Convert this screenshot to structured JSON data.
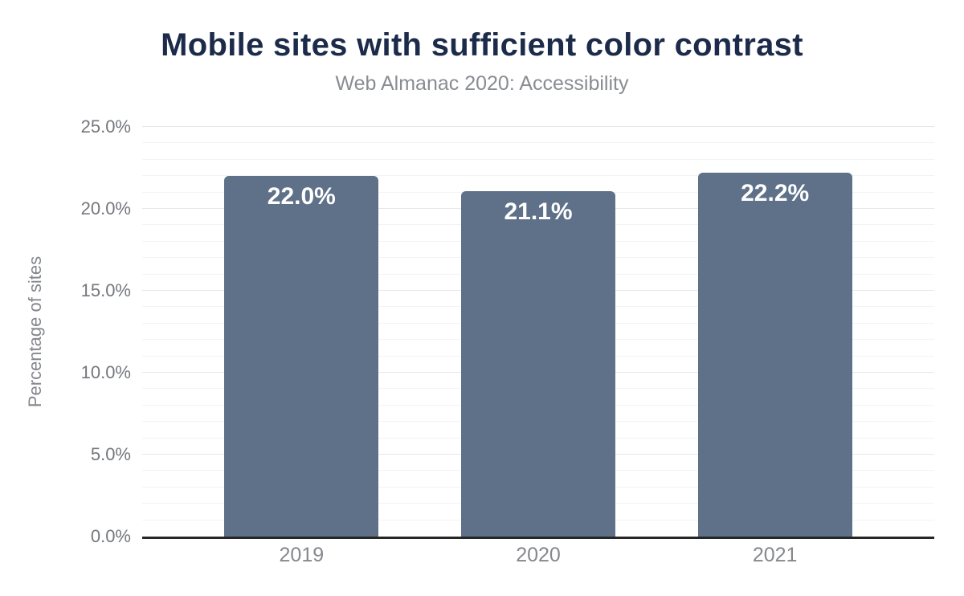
{
  "header": {
    "title": "Mobile sites with sufficient color contrast",
    "subtitle": "Web Almanac 2020: Accessibility"
  },
  "chart_data": {
    "type": "bar",
    "title": "Mobile sites with sufficient color contrast",
    "subtitle": "Web Almanac 2020: Accessibility",
    "categories": [
      "2019",
      "2020",
      "2021"
    ],
    "values": [
      22.0,
      21.1,
      22.2
    ],
    "bar_labels": [
      "22.0%",
      "21.1%",
      "22.2%"
    ],
    "xlabel": "",
    "ylabel": "Percentage of sites",
    "ylim": [
      0,
      25
    ],
    "yticks": [
      {
        "value": 0,
        "label": "0.0%"
      },
      {
        "value": 5,
        "label": "5.0%"
      },
      {
        "value": 10,
        "label": "10.0%"
      },
      {
        "value": 15,
        "label": "15.0%"
      },
      {
        "value": 20,
        "label": "20.0%"
      },
      {
        "value": 25,
        "label": "25.0%"
      }
    ],
    "minor_tick_step": 1,
    "major_tick_step": 5,
    "grid": "horizontal major and minor gridlines",
    "legend": "none",
    "colors": {
      "bar": "#5e7189",
      "bar_label": "#ffffff",
      "title": "#1c2b4a",
      "subtitle": "#898c91",
      "axis_line": "#262626",
      "y_tick_label": "#74777c",
      "x_tick_label": "#85888d",
      "gridline_major": "#e6e7ea",
      "gridline_minor": "#f2f3f5",
      "background": "#ffffff"
    }
  }
}
